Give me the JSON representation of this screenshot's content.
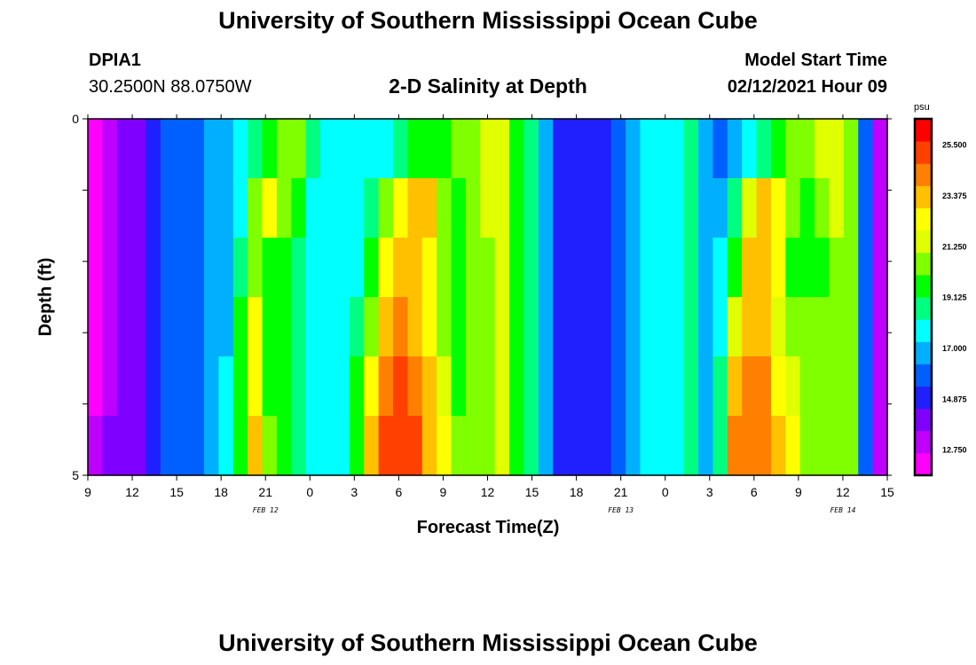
{
  "header": {
    "title_top": "University of Southern Mississippi Ocean Cube",
    "title_bottom": "University of Southern Mississippi Ocean Cube",
    "station": "DPIA1",
    "coords": "30.2500N 88.0750W",
    "chart_title": "2-D Salinity at Depth",
    "model_start_label": "Model Start Time",
    "model_start_value": "02/12/2021 Hour 09"
  },
  "chart_data": {
    "type": "heatmap",
    "title": "2-D Salinity at Depth",
    "xlabel": "Forecast Time(Z)",
    "ylabel": "Depth (ft)",
    "x_tick_labels": [
      "9",
      "12",
      "15",
      "18",
      "21",
      "0",
      "3",
      "6",
      "9",
      "12",
      "15",
      "18",
      "21",
      "0",
      "3",
      "6",
      "9",
      "12",
      "15"
    ],
    "date_labels": [
      "FEB 12",
      "FEB 13",
      "FEB 14"
    ],
    "y_tick_labels": [
      "0",
      "5"
    ],
    "ylim": [
      0,
      5
    ],
    "xlim_hours": [
      0,
      54
    ],
    "colorbar": {
      "unit": "psu",
      "range": [
        11.7,
        26.6
      ],
      "ticks": [
        "25.500",
        "23.375",
        "21.250",
        "19.125",
        "17.000",
        "14.875",
        "12.750"
      ],
      "colors": [
        "#ff00ff",
        "#c000ff",
        "#8000ff",
        "#2020ff",
        "#0060ff",
        "#00b0ff",
        "#00ffff",
        "#00ff80",
        "#00ff00",
        "#80ff00",
        "#e0ff00",
        "#ffff00",
        "#ffc000",
        "#ff8000",
        "#ff4000",
        "#ff0000"
      ]
    },
    "depth_levels": [
      0,
      1,
      2,
      3,
      4,
      5
    ],
    "time_hours": [
      0,
      1,
      2,
      3,
      4,
      5,
      6,
      7,
      8,
      9,
      10,
      11,
      12,
      13,
      14,
      15,
      16,
      17,
      18,
      19,
      20,
      21,
      22,
      23,
      24,
      25,
      26,
      27,
      28,
      29,
      30,
      31,
      32,
      33,
      34,
      35,
      36,
      37,
      38,
      39,
      40,
      41,
      42,
      43,
      44,
      45,
      46,
      47,
      48,
      49,
      50,
      51,
      52,
      53,
      54
    ],
    "salinity_by_depth": [
      [
        12.6,
        13.0,
        13.6,
        14.0,
        14.6,
        15.6,
        16.3,
        16.3,
        16.4,
        16.6,
        17.5,
        18.6,
        19.5,
        20.6,
        20.6,
        18.4,
        17.4,
        17.4,
        17.4,
        17.6,
        17.9,
        18.3,
        19.3,
        19.3,
        19.8,
        20.2,
        20.9,
        21.2,
        21.2,
        19.8,
        18.4,
        16.8,
        15.4,
        15.0,
        15.0,
        15.0,
        16.0,
        17.0,
        17.5,
        17.8,
        18.2,
        18.5,
        16.6,
        16.0,
        16.5,
        17.6,
        18.6,
        19.6,
        20.6,
        21.0,
        21.3,
        21.5,
        20.6,
        15.6,
        13.5
      ],
      [
        12.6,
        13.0,
        13.6,
        14.0,
        14.6,
        15.6,
        16.3,
        16.3,
        16.6,
        17.0,
        18.0,
        21.0,
        22.0,
        21.0,
        19.6,
        17.4,
        17.4,
        17.4,
        17.4,
        18.5,
        20.5,
        22.0,
        23.0,
        23.0,
        21.0,
        20.0,
        20.9,
        21.2,
        21.2,
        19.8,
        18.4,
        16.8,
        15.4,
        15.0,
        15.0,
        15.0,
        16.0,
        17.0,
        17.5,
        17.8,
        18.2,
        18.5,
        16.6,
        17.0,
        19.0,
        21.5,
        23.0,
        22.0,
        20.6,
        20.0,
        20.6,
        21.5,
        20.6,
        15.6,
        13.5
      ],
      [
        12.6,
        13.0,
        13.6,
        14.0,
        14.6,
        15.6,
        16.3,
        16.3,
        16.6,
        17.0,
        19.0,
        21.0,
        20.0,
        19.5,
        18.6,
        17.4,
        17.4,
        17.4,
        17.4,
        19.5,
        22.5,
        23.0,
        23.0,
        22.0,
        20.5,
        20.0,
        20.5,
        21.0,
        21.2,
        19.8,
        18.4,
        16.8,
        15.4,
        15.0,
        15.0,
        15.0,
        16.0,
        17.0,
        17.5,
        17.8,
        18.2,
        18.5,
        16.6,
        17.5,
        20.0,
        23.0,
        23.0,
        22.0,
        20.0,
        19.5,
        20.0,
        21.0,
        20.6,
        15.6,
        13.5
      ],
      [
        12.6,
        13.0,
        13.6,
        14.0,
        14.6,
        15.6,
        16.3,
        16.3,
        16.6,
        17.2,
        19.3,
        22.0,
        20.0,
        19.5,
        18.6,
        17.4,
        17.4,
        17.4,
        18.5,
        21.0,
        23.5,
        24.0,
        23.5,
        22.5,
        21.0,
        20.0,
        20.5,
        20.8,
        21.2,
        19.8,
        18.4,
        16.8,
        15.4,
        15.0,
        15.0,
        15.0,
        16.0,
        17.0,
        17.5,
        17.8,
        18.2,
        18.5,
        16.6,
        18.0,
        21.5,
        23.5,
        23.5,
        21.5,
        20.5,
        20.2,
        20.5,
        21.0,
        20.6,
        15.6,
        13.5
      ],
      [
        12.6,
        13.0,
        13.6,
        14.0,
        14.6,
        15.6,
        16.3,
        16.3,
        16.6,
        17.5,
        19.6,
        22.8,
        20.0,
        19.5,
        18.4,
        17.4,
        17.4,
        17.4,
        19.5,
        22.5,
        24.5,
        25.0,
        24.0,
        23.0,
        21.5,
        20.0,
        20.5,
        20.8,
        21.2,
        19.8,
        18.4,
        16.8,
        15.4,
        15.0,
        15.0,
        15.0,
        16.0,
        17.0,
        17.5,
        17.8,
        18.2,
        18.5,
        16.6,
        18.5,
        23.0,
        24.0,
        24.0,
        22.5,
        21.5,
        20.5,
        20.5,
        20.6,
        20.6,
        15.6,
        13.5
      ],
      [
        13.4,
        13.6,
        14.0,
        14.3,
        14.8,
        15.6,
        16.3,
        16.3,
        16.6,
        17.8,
        19.8,
        23.2,
        20.5,
        19.5,
        18.3,
        17.4,
        17.4,
        17.4,
        20.0,
        23.5,
        25.0,
        25.5,
        25.0,
        23.5,
        22.0,
        20.5,
        20.5,
        20.8,
        21.2,
        19.8,
        18.4,
        16.8,
        15.4,
        15.0,
        15.0,
        15.0,
        16.0,
        17.0,
        17.5,
        17.8,
        18.2,
        18.5,
        16.6,
        19.0,
        24.0,
        24.5,
        24.0,
        23.0,
        22.0,
        21.0,
        20.5,
        20.4,
        20.6,
        15.6,
        13.5
      ]
    ]
  }
}
